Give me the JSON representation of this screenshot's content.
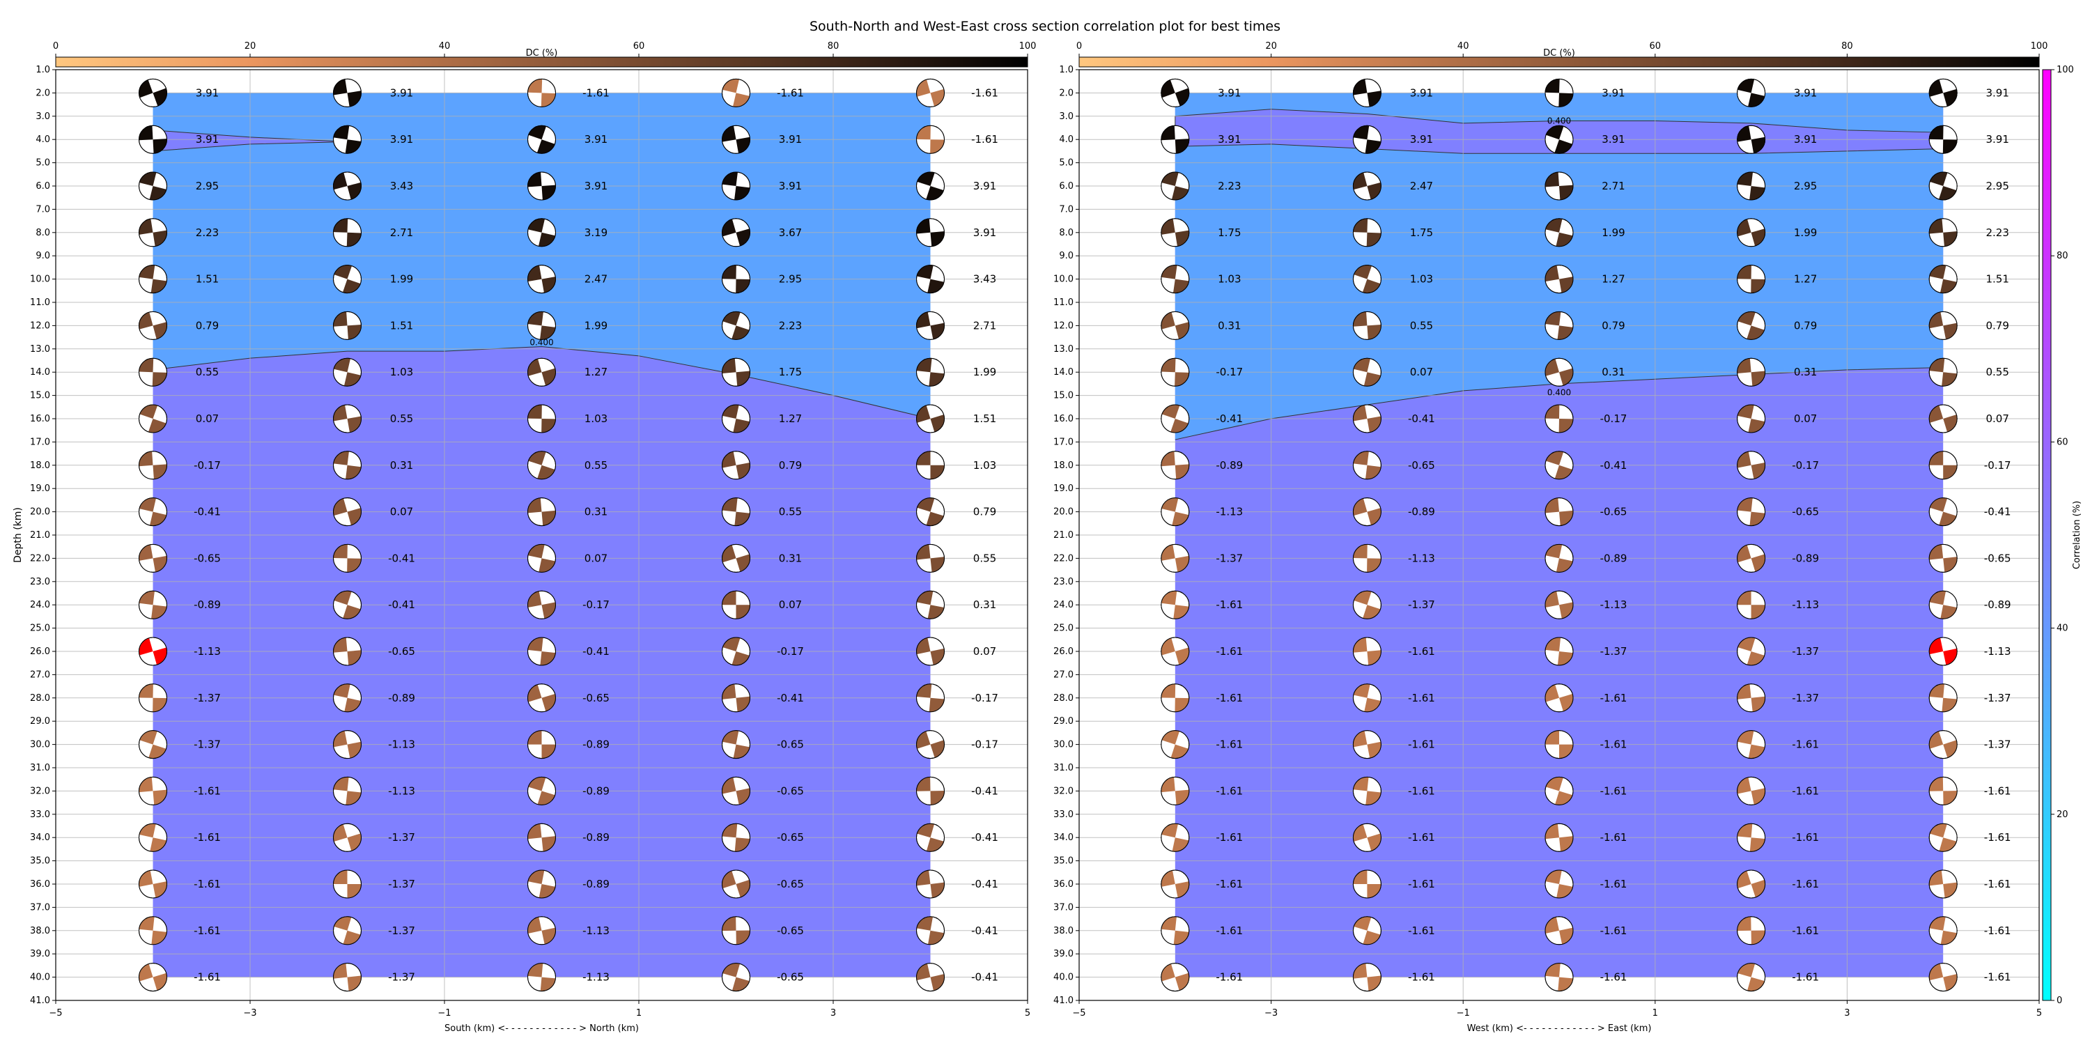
{
  "chart_data": {
    "type": "scatter",
    "title": "South-North and West-East cross section correlation plot for best times",
    "dc_colorbar": {
      "label": "DC (%)",
      "ticks": [
        0,
        20,
        40,
        60,
        80,
        100
      ],
      "colormap": "copper_r"
    },
    "correlation_colorbar": {
      "label": "Correlation (%)",
      "ticks": [
        0,
        20,
        40,
        60,
        80,
        100
      ],
      "colormap": "cool",
      "colors": {
        "low": "#00ffff",
        "high": "#ff00ff"
      }
    },
    "ylabel": "Depth (km)",
    "depth_ticks": [
      "1.0",
      "2.0",
      "3.0",
      "4.0",
      "5.0",
      "6.0",
      "7.0",
      "8.0",
      "9.0",
      "10.0",
      "11.0",
      "12.0",
      "13.0",
      "14.0",
      "15.0",
      "16.0",
      "17.0",
      "18.0",
      "19.0",
      "20.0",
      "21.0",
      "22.0",
      "23.0",
      "24.0",
      "25.0",
      "26.0",
      "27.0",
      "28.0",
      "29.0",
      "30.0",
      "31.0",
      "32.0",
      "33.0",
      "34.0",
      "35.0",
      "36.0",
      "37.0",
      "38.0",
      "39.0",
      "40.0",
      "41.0"
    ],
    "ylim": [
      41,
      1
    ],
    "xlim": [
      -5,
      5
    ],
    "x_ticks": [
      "−5",
      "−3",
      "−1",
      "1",
      "3",
      "5"
    ],
    "grid": true,
    "best_color": "#ff0000",
    "contour_level": "0.400",
    "panels": [
      {
        "xlabel": "South (km) <- - - - - - - - - - - - > North (km)",
        "x": [
          -4,
          -2,
          0,
          2,
          4
        ],
        "depths": [
          2,
          4,
          6,
          8,
          10,
          12,
          14,
          16,
          18,
          20,
          22,
          24,
          26,
          28,
          30,
          32,
          34,
          36,
          38,
          40
        ],
        "best": {
          "x": -4,
          "depth": 26
        },
        "contour_x": [
          -4,
          -3,
          -2,
          -1,
          0,
          1,
          2,
          3,
          4
        ],
        "contour_upper_depth": [
          3.6,
          3.9,
          4.1
        ],
        "contour_lower_depth": [
          13.9,
          13.4,
          13.1,
          13.1,
          12.9,
          13.3,
          14.1,
          15.0,
          16.0
        ],
        "rows": [
          [
            "3.91",
            "3.91",
            "-1.61",
            "-1.61",
            "-1.61"
          ],
          [
            "3.91",
            "3.91",
            "3.91",
            "3.91",
            "-1.61"
          ],
          [
            "2.95",
            "3.43",
            "3.91",
            "3.91",
            "3.91"
          ],
          [
            "2.23",
            "2.71",
            "3.19",
            "3.67",
            "3.91"
          ],
          [
            "1.51",
            "1.99",
            "2.47",
            "2.95",
            "3.43"
          ],
          [
            "0.79",
            "1.51",
            "1.99",
            "2.23",
            "2.71"
          ],
          [
            "0.55",
            "1.03",
            "1.27",
            "1.75",
            "1.99"
          ],
          [
            "0.07",
            "0.55",
            "1.03",
            "1.27",
            "1.51"
          ],
          [
            "-0.17",
            "0.31",
            "0.55",
            "0.79",
            "1.03"
          ],
          [
            "-0.41",
            "0.07",
            "0.31",
            "0.55",
            "0.79"
          ],
          [
            "-0.65",
            "-0.41",
            "0.07",
            "0.31",
            "0.55"
          ],
          [
            "-0.89",
            "-0.41",
            "-0.17",
            "0.07",
            "0.31"
          ],
          [
            "-1.13",
            "-0.65",
            "-0.41",
            "-0.17",
            "0.07"
          ],
          [
            "-1.37",
            "-0.89",
            "-0.65",
            "-0.41",
            "-0.17"
          ],
          [
            "-1.37",
            "-1.13",
            "-0.89",
            "-0.65",
            "-0.17"
          ],
          [
            "-1.61",
            "-1.13",
            "-0.89",
            "-0.65",
            "-0.41"
          ],
          [
            "-1.61",
            "-1.37",
            "-0.89",
            "-0.65",
            "-0.41"
          ],
          [
            "-1.61",
            "-1.37",
            "-0.89",
            "-0.65",
            "-0.41"
          ],
          [
            "-1.61",
            "-1.37",
            "-1.13",
            "-0.65",
            "-0.41"
          ],
          [
            "-1.61",
            "-1.37",
            "-1.13",
            "-0.65",
            "-0.41"
          ]
        ]
      },
      {
        "xlabel": "West (km) <- - - - - - - - - - - - > East (km)",
        "x": [
          -4,
          -2,
          0,
          2,
          4
        ],
        "depths": [
          2,
          4,
          6,
          8,
          10,
          12,
          14,
          16,
          18,
          20,
          22,
          24,
          26,
          28,
          30,
          32,
          34,
          36,
          38,
          40
        ],
        "best": {
          "x": 4,
          "depth": 26
        },
        "contour_x": [
          -4,
          -3,
          -2,
          -1,
          0,
          1,
          2,
          3,
          4
        ],
        "contour_upper_depth": [
          3.0,
          2.7,
          2.9,
          3.3,
          3.2,
          3.2,
          3.3,
          3.6,
          3.7
        ],
        "contour_lower_depth": [
          4.3,
          4.2,
          4.4,
          4.6,
          4.6,
          4.6,
          4.6,
          4.5,
          4.4
        ],
        "contour2_x": [
          -4,
          -3,
          -2,
          -1,
          0,
          1,
          2,
          3,
          4
        ],
        "contour2_depth": [
          16.9,
          16.0,
          15.4,
          14.8,
          14.5,
          14.3,
          14.1,
          13.9,
          13.8
        ],
        "rows": [
          [
            "3.91",
            "3.91",
            "3.91",
            "3.91",
            "3.91"
          ],
          [
            "3.91",
            "3.91",
            "3.91",
            "3.91",
            "3.91"
          ],
          [
            "2.23",
            "2.47",
            "2.71",
            "2.95",
            "2.95"
          ],
          [
            "1.75",
            "1.75",
            "1.99",
            "1.99",
            "2.23"
          ],
          [
            "1.03",
            "1.03",
            "1.27",
            "1.27",
            "1.51"
          ],
          [
            "0.31",
            "0.55",
            "0.79",
            "0.79",
            "0.79"
          ],
          [
            "-0.17",
            "0.07",
            "0.31",
            "0.31",
            "0.55"
          ],
          [
            "-0.41",
            "-0.41",
            "-0.17",
            "0.07",
            "0.07"
          ],
          [
            "-0.89",
            "-0.65",
            "-0.41",
            "-0.17",
            "-0.17"
          ],
          [
            "-1.13",
            "-0.89",
            "-0.65",
            "-0.65",
            "-0.41"
          ],
          [
            "-1.37",
            "-1.13",
            "-0.89",
            "-0.89",
            "-0.65"
          ],
          [
            "-1.61",
            "-1.37",
            "-1.13",
            "-1.13",
            "-0.89"
          ],
          [
            "-1.61",
            "-1.61",
            "-1.37",
            "-1.37",
            "-1.13"
          ],
          [
            "-1.61",
            "-1.61",
            "-1.61",
            "-1.37",
            "-1.37"
          ],
          [
            "-1.61",
            "-1.61",
            "-1.61",
            "-1.61",
            "-1.37"
          ],
          [
            "-1.61",
            "-1.61",
            "-1.61",
            "-1.61",
            "-1.61"
          ],
          [
            "-1.61",
            "-1.61",
            "-1.61",
            "-1.61",
            "-1.61"
          ],
          [
            "-1.61",
            "-1.61",
            "-1.61",
            "-1.61",
            "-1.61"
          ],
          [
            "-1.61",
            "-1.61",
            "-1.61",
            "-1.61",
            "-1.61"
          ],
          [
            "-1.61",
            "-1.61",
            "-1.61",
            "-1.61",
            "-1.61"
          ]
        ]
      }
    ]
  }
}
